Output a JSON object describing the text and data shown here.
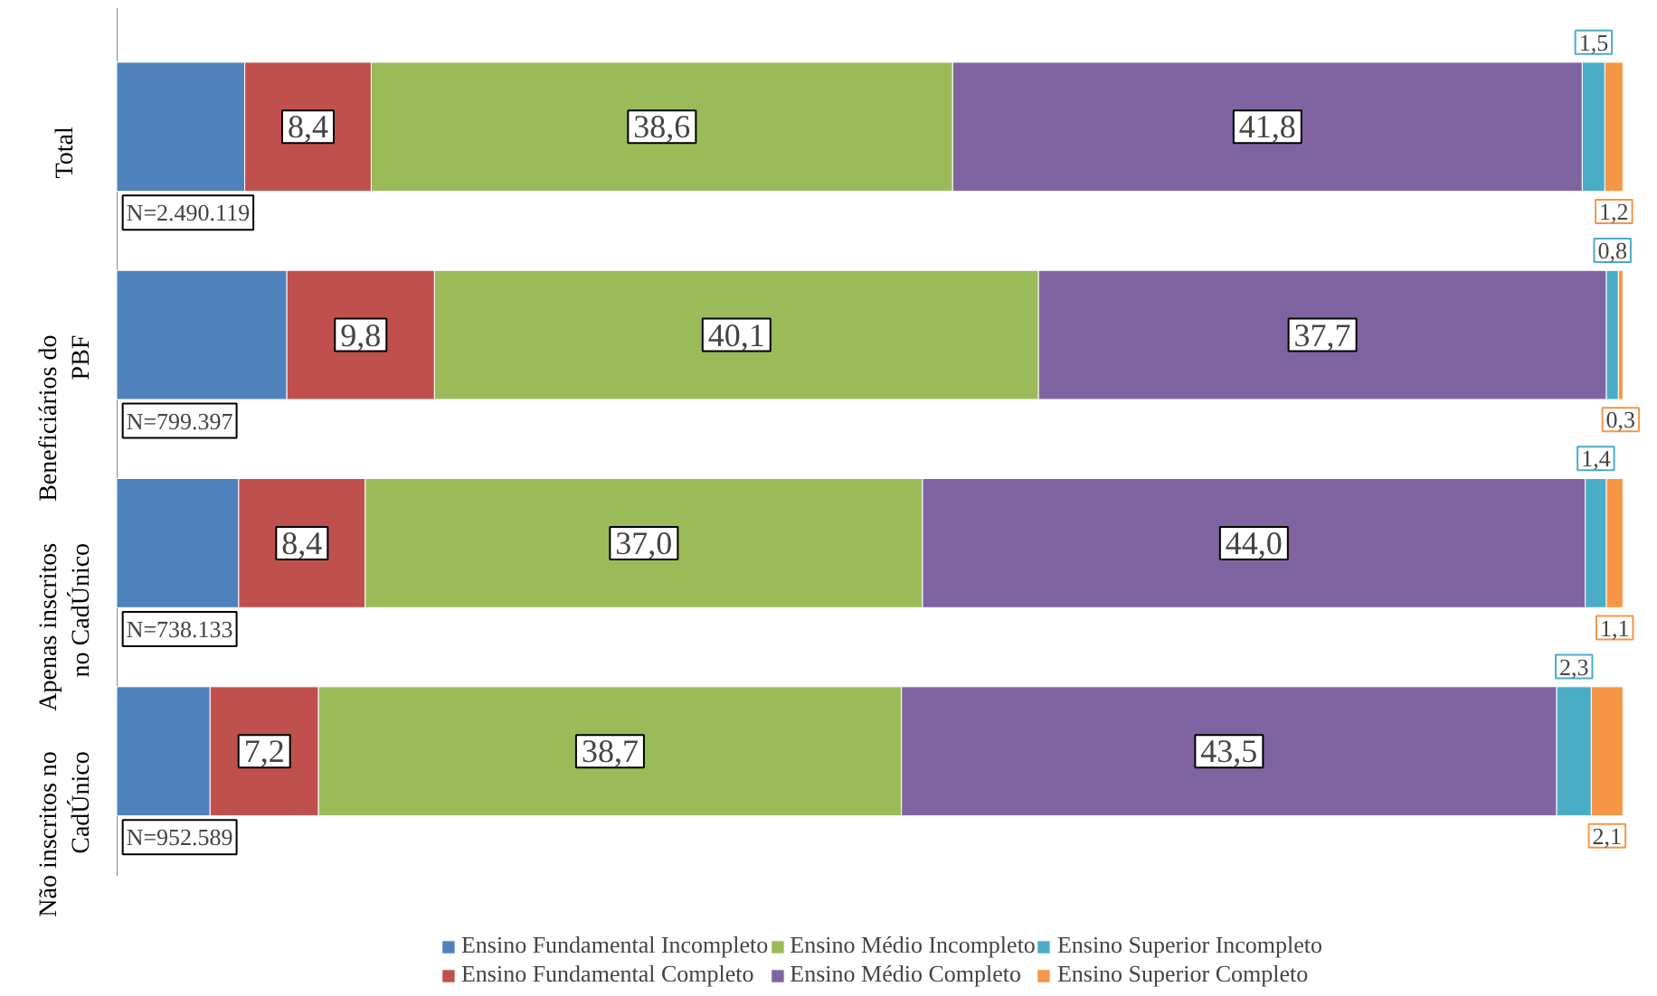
{
  "chart_data": {
    "type": "bar",
    "orientation": "horizontal",
    "stacked": true,
    "legend": "bottom",
    "categories": [
      "Total",
      "Beneficiários do PBF",
      "Apenas inscritos no CadÚnico",
      "Não inscritos no CadÚnico"
    ],
    "series": [
      {
        "name": "Ensino Fundamental Incompleto",
        "color": "#4f81bd",
        "values": [
          8.5,
          11.3,
          8.1,
          6.2
        ],
        "value_labels": [
          null,
          null,
          null,
          null
        ]
      },
      {
        "name": "Ensino Fundamental Completo",
        "color": "#c0504d",
        "values": [
          8.4,
          9.8,
          8.4,
          7.2
        ],
        "value_labels": [
          "8,4",
          "9,8",
          "8,4",
          "7,2"
        ]
      },
      {
        "name": "Ensino Médio Incompleto",
        "color": "#9bbb59",
        "values": [
          38.6,
          40.1,
          37.0,
          38.7
        ],
        "value_labels": [
          "38,6",
          "40,1",
          "37,0",
          "38,7"
        ]
      },
      {
        "name": "Ensino Médio Completo",
        "color": "#8064a2",
        "values": [
          41.8,
          37.7,
          44.0,
          43.5
        ],
        "value_labels": [
          "41,8",
          "37,7",
          "44,0",
          "43,5"
        ]
      },
      {
        "name": "Ensino Superior Incompleto",
        "color": "#4bacc6",
        "values": [
          1.5,
          0.8,
          1.4,
          2.3
        ],
        "value_labels": [
          "1,5",
          "0,8",
          "1,4",
          "2,3"
        ]
      },
      {
        "name": "Ensino Superior Completo",
        "color": "#f79646",
        "values": [
          1.2,
          0.3,
          1.1,
          2.1
        ],
        "value_labels": [
          "1,2",
          "0,3",
          "1,1",
          "2,1"
        ]
      }
    ],
    "annotations": [
      "N=2.490.119",
      "N=799.397",
      "N=738.133",
      "N=952.589"
    ]
  }
}
